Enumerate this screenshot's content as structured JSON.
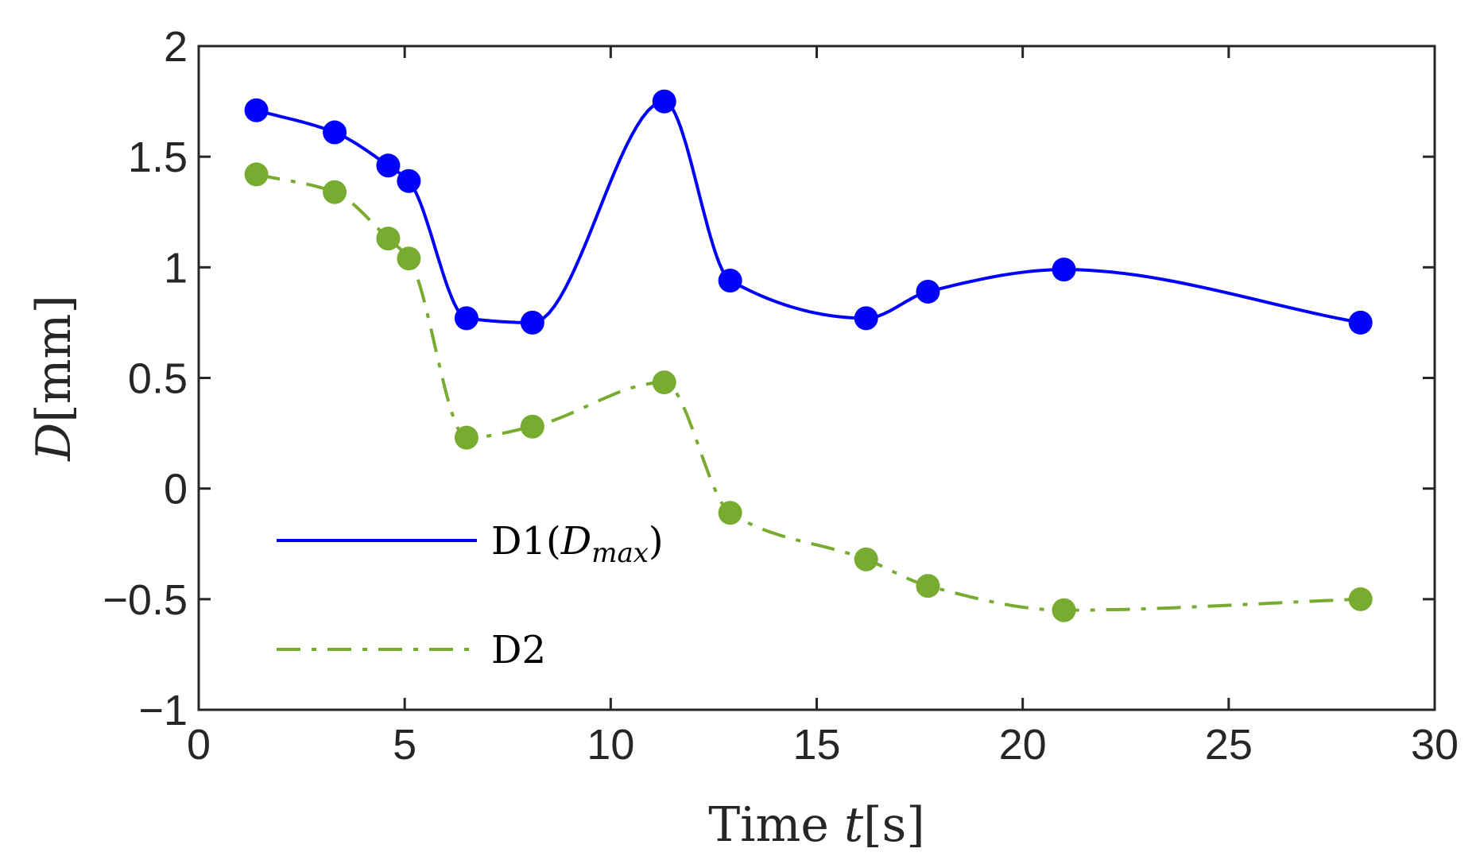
{
  "chart_data": {
    "type": "line",
    "title": "",
    "xlabel": "Time t[s]",
    "xlabel_parts": {
      "text": "Time ",
      "var": "t",
      "unit": "[s]"
    },
    "ylabel": "D[mm]",
    "ylabel_parts": {
      "var": "D",
      "unit": "[mm]"
    },
    "xlim": [
      0,
      30
    ],
    "ylim": [
      -1,
      2
    ],
    "xticks": [
      0,
      5,
      10,
      15,
      20,
      25,
      30
    ],
    "xtick_labels": [
      "0",
      "5",
      "10",
      "15",
      "20",
      "25",
      "30"
    ],
    "yticks": [
      -1,
      -0.5,
      0,
      0.5,
      1,
      1.5,
      2
    ],
    "ytick_labels": [
      "−1",
      "−0.5",
      "0",
      "0.5",
      "1",
      "1.5",
      "2"
    ],
    "grid": false,
    "legend_position": "lower-left",
    "series": [
      {
        "name": "D1(Dmax)",
        "legend_text": "D1(",
        "legend_var": "D",
        "legend_sub": "max",
        "legend_close": ")",
        "color": "#0000FF",
        "line_style": "solid",
        "marker": "circle",
        "x": [
          1.4,
          3.3,
          4.6,
          5.1,
          6.5,
          8.1,
          11.3,
          12.9,
          16.2,
          17.7,
          21.0,
          28.2
        ],
        "y": [
          1.71,
          1.61,
          1.46,
          1.39,
          0.77,
          0.75,
          1.75,
          0.94,
          0.77,
          0.89,
          0.99,
          0.75
        ]
      },
      {
        "name": "D2",
        "legend_text": "D2",
        "color": "#77AC30",
        "line_style": "dashdot",
        "marker": "circle",
        "x": [
          1.4,
          3.3,
          4.6,
          5.1,
          6.5,
          8.1,
          11.3,
          12.9,
          16.2,
          17.7,
          21.0,
          28.2
        ],
        "y": [
          1.42,
          1.34,
          1.13,
          1.04,
          0.23,
          0.28,
          0.48,
          -0.11,
          -0.32,
          -0.44,
          -0.55,
          -0.5
        ]
      }
    ]
  }
}
